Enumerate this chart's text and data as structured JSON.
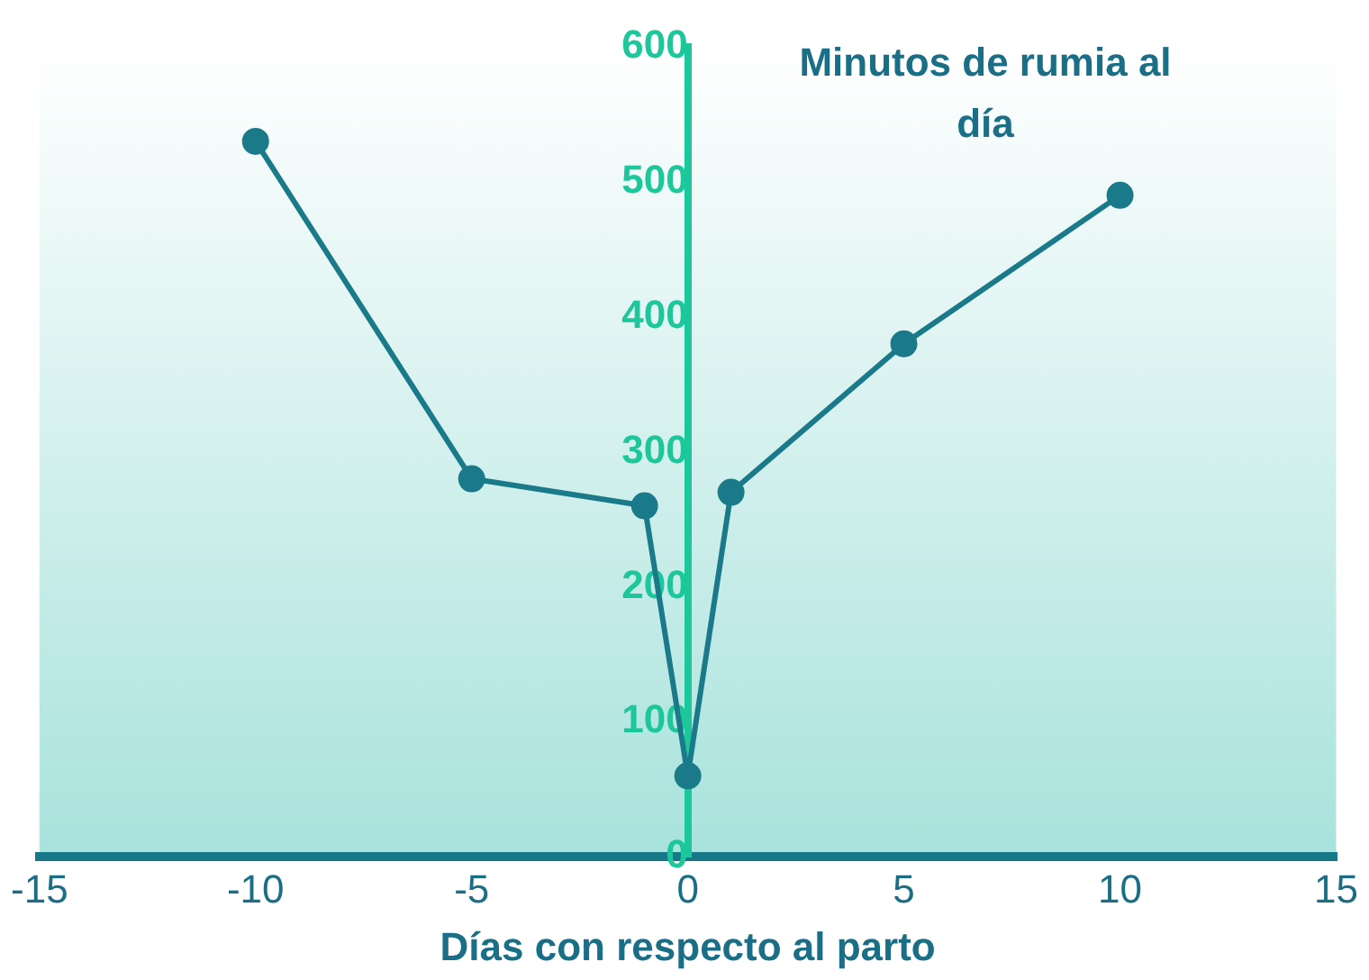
{
  "chart_data": {
    "type": "line",
    "xlabel": "Días con respecto al parto",
    "ylabel": "Minutos de rumia al día",
    "x": [
      -10,
      -5,
      -1,
      0,
      1,
      5,
      10
    ],
    "series": [
      {
        "color": "#1a7a8a",
        "values": [
          530,
          280,
          260,
          60,
          270,
          380,
          490
        ]
      }
    ],
    "xlim": [
      -15,
      15
    ],
    "xticks": [
      -15,
      -10,
      -5,
      0,
      5,
      10,
      15
    ],
    "ylim": [
      0,
      600
    ],
    "yticks": [
      0,
      100,
      200,
      300,
      400,
      500,
      600
    ],
    "grid": false,
    "legend": false,
    "marker": "circle",
    "line_style": "solid"
  }
}
